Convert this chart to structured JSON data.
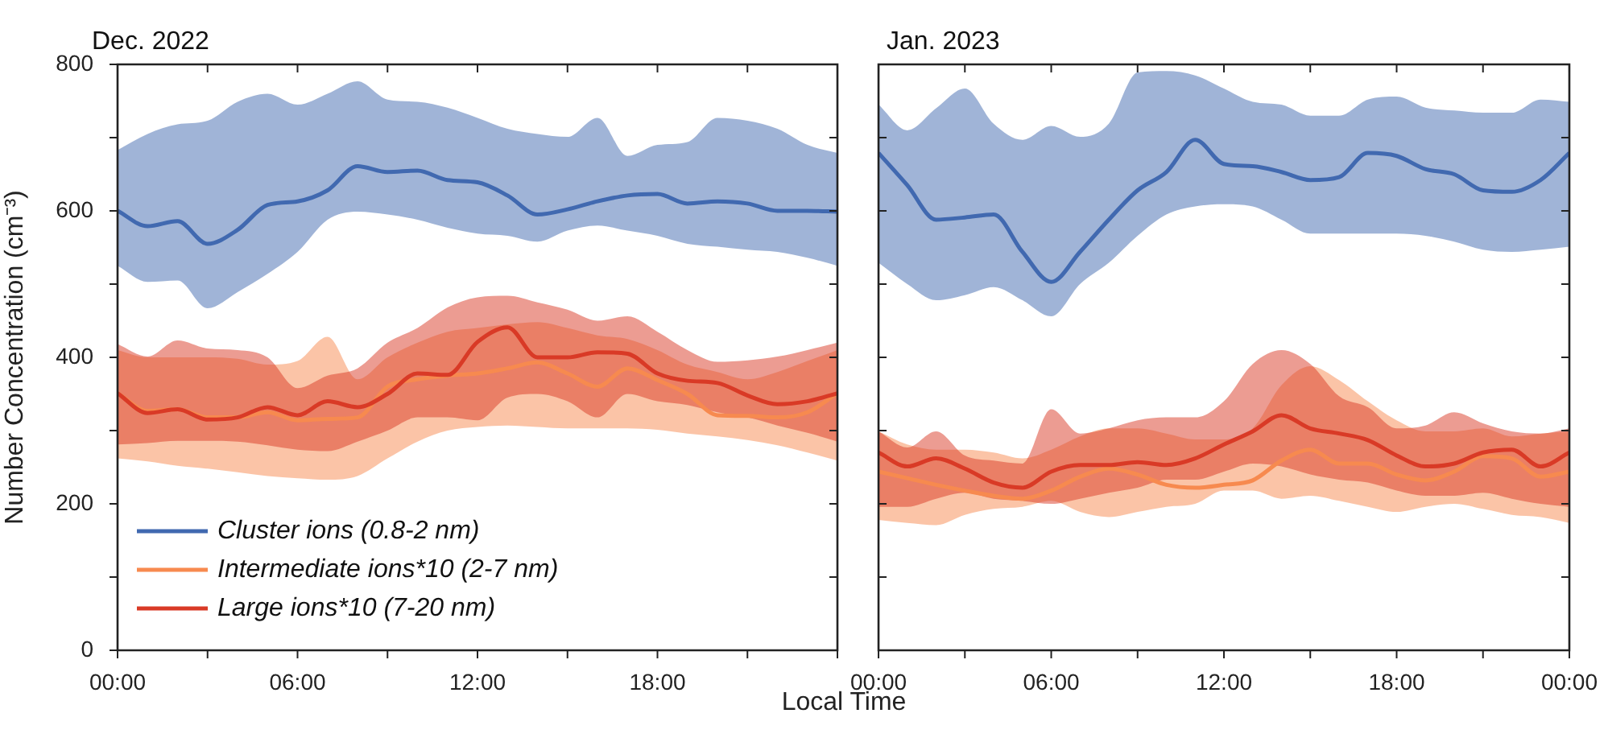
{
  "chart_data": [
    {
      "type": "line",
      "title": "Dec. 2022",
      "xlabel": "Local Time",
      "ylabel": "Number Concentration (cm⁻³)",
      "legend": "bottom left",
      "line_style": "solid",
      "x": [
        0,
        1,
        2,
        3,
        4,
        5,
        6,
        7,
        8,
        9,
        10,
        11,
        12,
        13,
        14,
        15,
        16,
        17,
        18,
        19,
        20,
        21,
        22,
        23,
        24
      ],
      "xlim": [
        0,
        24
      ],
      "xticks": [
        {
          "value": 0,
          "label": "00:00"
        },
        {
          "value": 3,
          "label": null
        },
        {
          "value": 6,
          "label": "06:00"
        },
        {
          "value": 9,
          "label": null
        },
        {
          "value": 12,
          "label": "12:00"
        },
        {
          "value": 15,
          "label": null
        },
        {
          "value": 18,
          "label": "18:00"
        },
        {
          "value": 21,
          "label": null
        },
        {
          "value": 24,
          "label": null
        }
      ],
      "ylim": [
        0,
        800
      ],
      "yticks": [
        0,
        {
          "value": 100,
          "label": null
        },
        200,
        {
          "value": 300,
          "label": null
        },
        400,
        {
          "value": 500,
          "label": null
        },
        600,
        {
          "value": 700,
          "label": null
        },
        800
      ],
      "series": [
        {
          "name": "Cluster ions (0.8-2 nm)",
          "color": "#4169b0",
          "values": [
            600,
            579,
            586,
            555,
            574,
            608,
            613,
            628,
            661,
            653,
            655,
            642,
            639,
            621,
            595,
            602,
            613,
            621,
            623,
            610,
            613,
            610,
            600,
            600,
            599
          ],
          "upper": [
            683,
            705,
            718,
            723,
            749,
            760,
            745,
            760,
            777,
            752,
            749,
            741,
            727,
            712,
            705,
            701,
            727,
            675,
            690,
            694,
            727,
            723,
            712,
            690,
            679
          ],
          "lower": [
            525,
            503,
            505,
            467,
            489,
            514,
            544,
            588,
            599,
            595,
            588,
            577,
            569,
            566,
            558,
            573,
            580,
            573,
            566,
            555,
            551,
            547,
            544,
            536,
            525
          ]
        },
        {
          "name": "Intermediate ions*10 (2-7 nm)",
          "color": "#f78a4f",
          "values": [
            351,
            327,
            329,
            318,
            318,
            325,
            314,
            316,
            318,
            360,
            370,
            375,
            378,
            385,
            393,
            378,
            360,
            385,
            369,
            350,
            321,
            320,
            318,
            325,
            351
          ],
          "upper": [
            410,
            400,
            400,
            400,
            398,
            390,
            395,
            428,
            370,
            400,
            420,
            435,
            440,
            445,
            448,
            440,
            430,
            425,
            410,
            390,
            380,
            370,
            380,
            395,
            410
          ],
          "lower": [
            262,
            258,
            252,
            248,
            243,
            238,
            235,
            233,
            238,
            262,
            285,
            300,
            305,
            307,
            305,
            303,
            303,
            303,
            301,
            296,
            292,
            287,
            280,
            270,
            259
          ]
        },
        {
          "name": "Large ions*10 (7-20 nm)",
          "color": "#d93a26",
          "values": [
            351,
            324,
            329,
            315,
            318,
            332,
            321,
            340,
            332,
            350,
            378,
            376,
            421,
            441,
            400,
            400,
            407,
            405,
            378,
            368,
            365,
            348,
            336,
            340,
            351
          ],
          "upper": [
            418,
            401,
            423,
            412,
            410,
            400,
            358,
            375,
            385,
            420,
            440,
            468,
            482,
            484,
            475,
            465,
            450,
            456,
            435,
            410,
            394,
            396,
            401,
            410,
            420
          ],
          "lower": [
            281,
            283,
            286,
            286,
            285,
            280,
            274,
            272,
            285,
            300,
            318,
            318,
            314,
            345,
            350,
            340,
            318,
            350,
            340,
            335,
            325,
            318,
            307,
            297,
            285
          ]
        }
      ]
    },
    {
      "type": "line",
      "title": "Jan. 2023",
      "line_style": "solid",
      "tick_labels": "x",
      "x": [
        0,
        1,
        2,
        3,
        4,
        5,
        6,
        7,
        8,
        9,
        10,
        11,
        12,
        13,
        14,
        15,
        16,
        17,
        18,
        19,
        20,
        21,
        22,
        23,
        24
      ],
      "xlim": [
        0,
        24
      ],
      "xticks": [
        {
          "value": 0,
          "label": "00:00"
        },
        {
          "value": 3,
          "label": null
        },
        {
          "value": 6,
          "label": "06:00"
        },
        {
          "value": 9,
          "label": null
        },
        {
          "value": 12,
          "label": "12:00"
        },
        {
          "value": 15,
          "label": null
        },
        {
          "value": 18,
          "label": "18:00"
        },
        {
          "value": 21,
          "label": null
        },
        {
          "value": 24,
          "label": "00:00"
        }
      ],
      "ylim": [
        0,
        800
      ],
      "yticks": [
        0,
        {
          "value": 100,
          "label": null
        },
        200,
        {
          "value": 300,
          "label": null
        },
        400,
        {
          "value": 500,
          "label": null
        },
        600,
        {
          "value": 700,
          "label": null
        },
        800
      ],
      "series": [
        {
          "color": "#4169b0",
          "values": [
            679,
            635,
            588,
            591,
            595,
            544,
            503,
            544,
            588,
            628,
            653,
            697,
            664,
            661,
            653,
            642,
            646,
            679,
            675,
            657,
            650,
            628,
            626,
            642,
            679
          ],
          "upper": [
            745,
            710,
            740,
            767,
            719,
            697,
            716,
            701,
            719,
            789,
            791,
            785,
            767,
            749,
            745,
            730,
            730,
            752,
            756,
            741,
            737,
            734,
            734,
            752,
            749
          ],
          "lower": [
            529,
            500,
            478,
            485,
            496,
            478,
            456,
            500,
            529,
            566,
            595,
            606,
            609,
            606,
            588,
            569,
            569,
            569,
            569,
            566,
            558,
            547,
            544,
            547,
            551
          ]
        },
        {
          "color": "#f78a4f",
          "values": [
            244,
            235,
            226,
            218,
            211,
            207,
            218,
            237,
            248,
            240,
            226,
            222,
            226,
            232,
            259,
            274,
            255,
            255,
            240,
            232,
            244,
            265,
            262,
            237,
            244
          ],
          "upper": [
            299,
            281,
            274,
            274,
            270,
            262,
            274,
            292,
            303,
            303,
            296,
            288,
            288,
            303,
            362,
            388,
            369,
            340,
            314,
            299,
            299,
            303,
            292,
            296,
            299
          ],
          "lower": [
            178,
            174,
            171,
            185,
            193,
            196,
            204,
            189,
            182,
            189,
            196,
            200,
            218,
            218,
            207,
            211,
            204,
            196,
            189,
            196,
            200,
            193,
            185,
            182,
            174
          ]
        },
        {
          "color": "#d93a26",
          "values": [
            270,
            251,
            262,
            248,
            229,
            222,
            244,
            253,
            253,
            257,
            253,
            262,
            281,
            299,
            321,
            303,
            296,
            287,
            266,
            251,
            255,
            270,
            274,
            251,
            270
          ],
          "upper": [
            299,
            277,
            299,
            266,
            259,
            255,
            329,
            296,
            303,
            314,
            318,
            318,
            340,
            391,
            410,
            391,
            347,
            332,
            303,
            307,
            325,
            310,
            299,
            296,
            303
          ],
          "lower": [
            196,
            196,
            207,
            215,
            207,
            204,
            200,
            207,
            215,
            222,
            233,
            233,
            244,
            255,
            251,
            240,
            233,
            229,
            218,
            211,
            211,
            215,
            207,
            200,
            196
          ]
        }
      ]
    }
  ]
}
